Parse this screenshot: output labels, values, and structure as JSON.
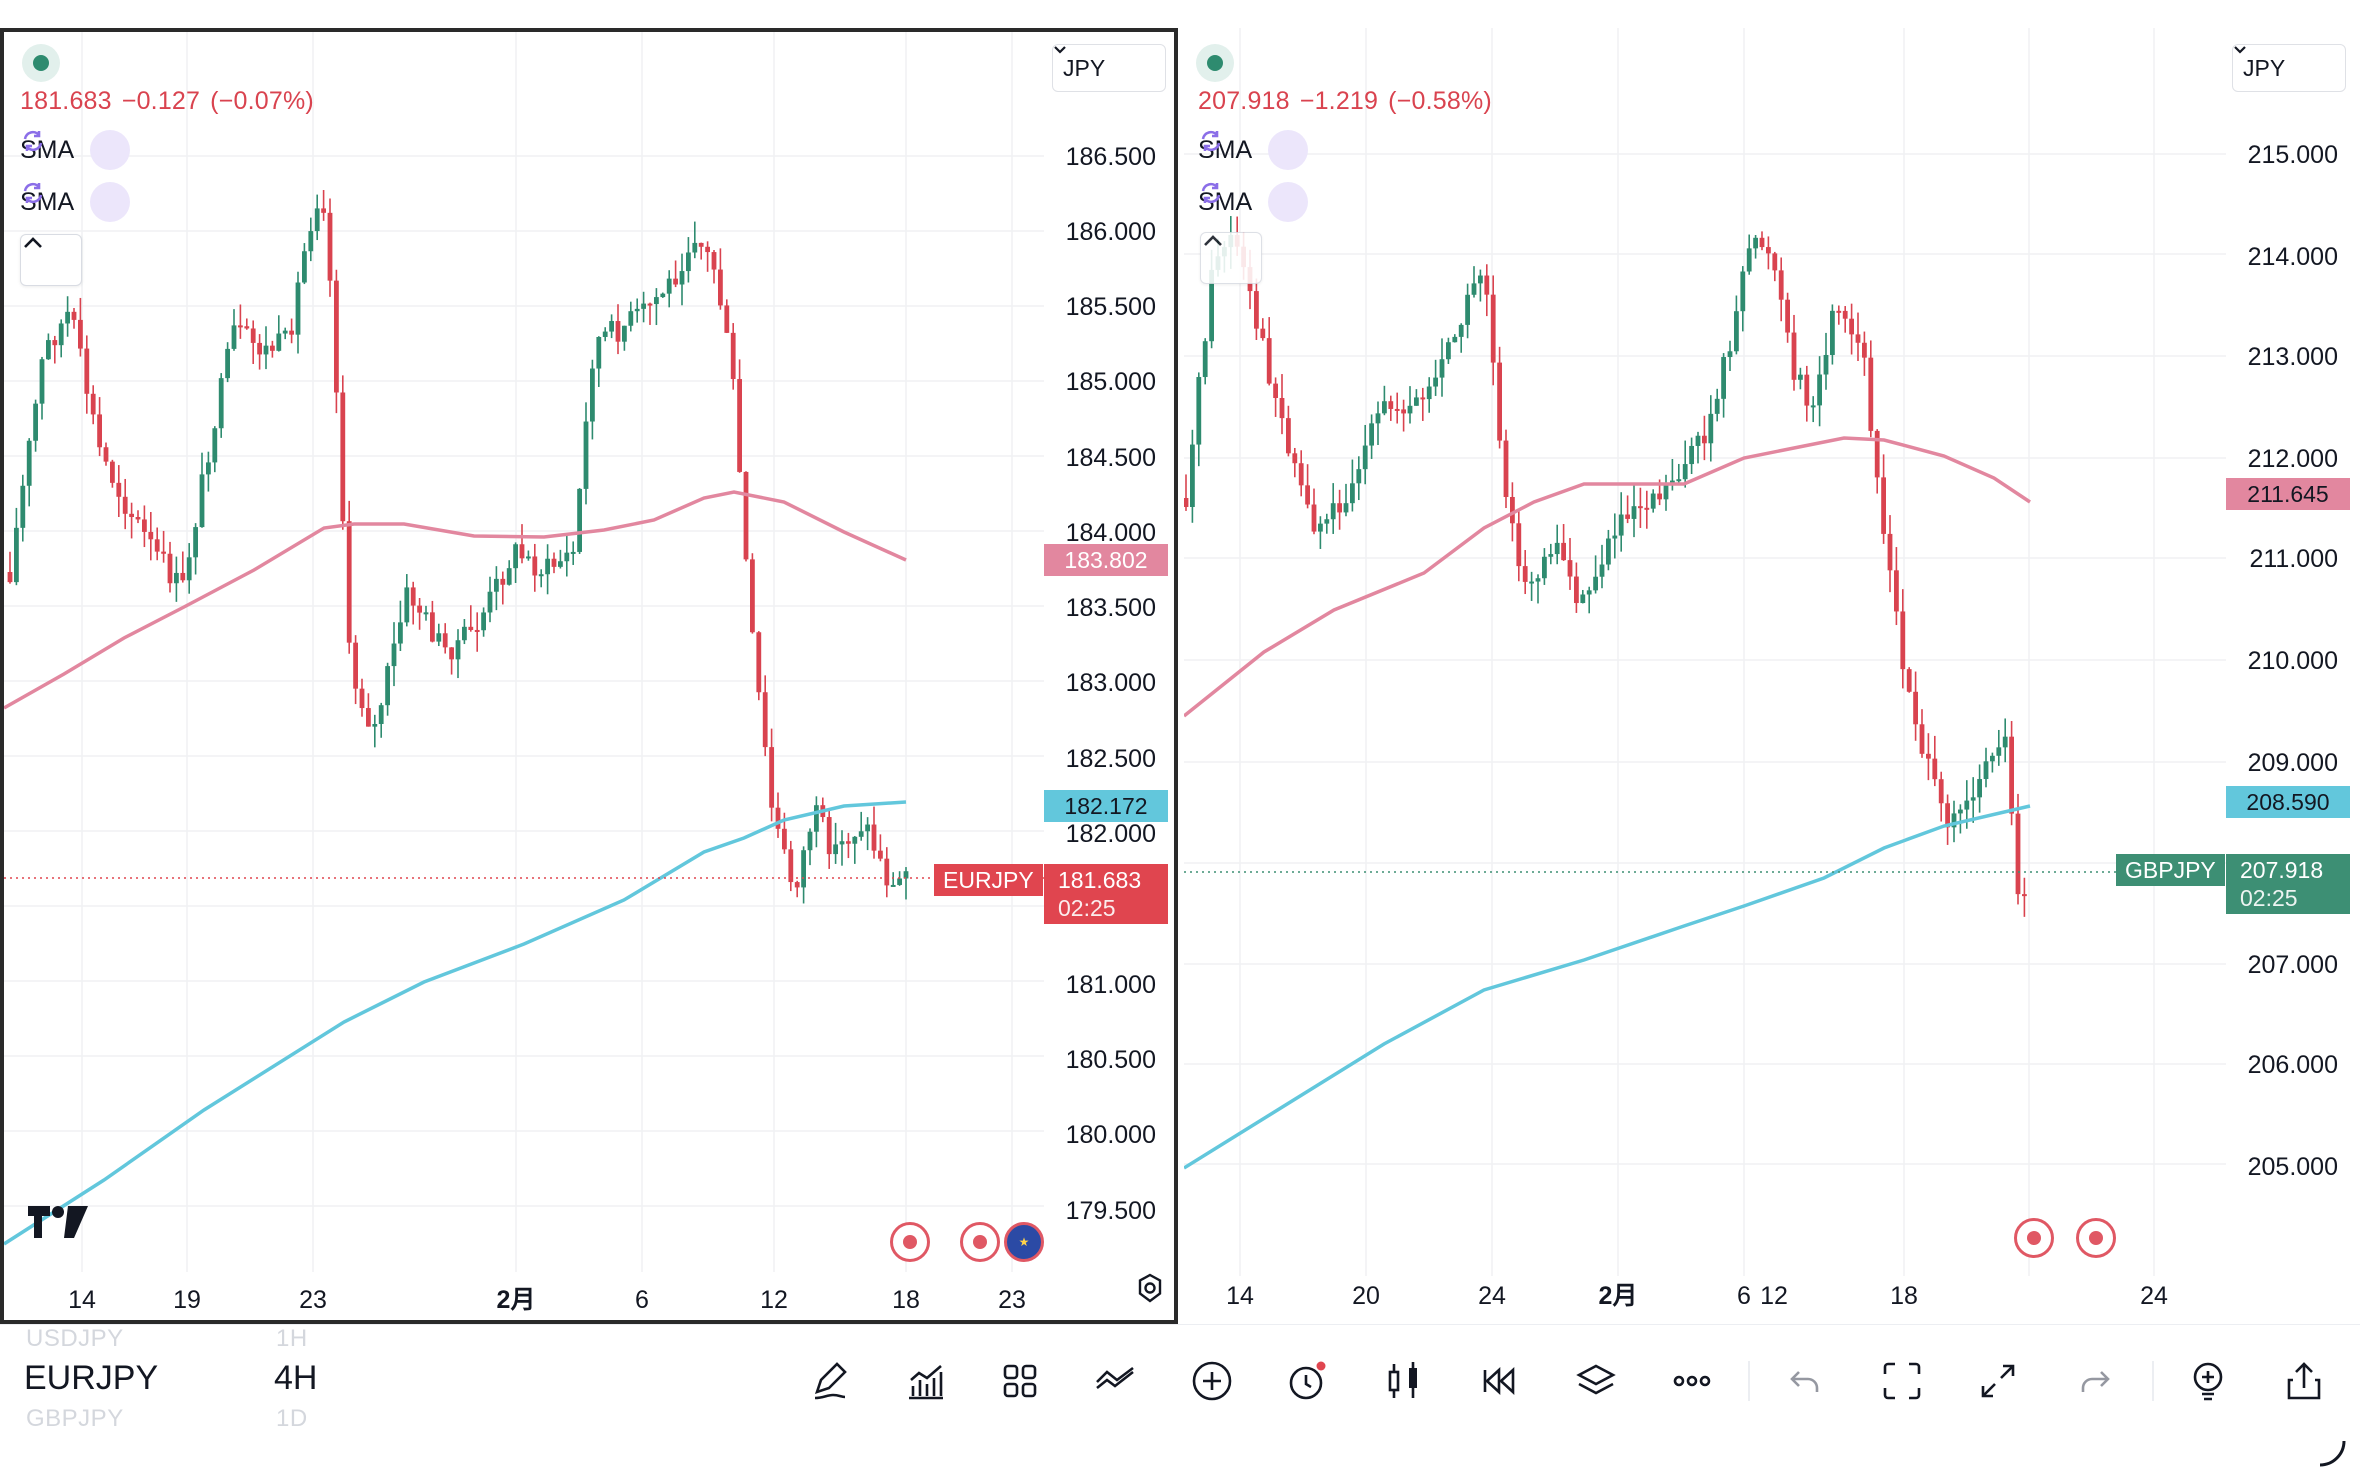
{
  "left_chart": {
    "symbol": "EURJPY",
    "currency": "JPY",
    "quote": {
      "price": "181.683",
      "change": "−0.127",
      "change_pct": "(−0.07%)"
    },
    "indicators": [
      {
        "label": "SMA"
      },
      {
        "label": "SMA"
      }
    ],
    "price_axis": [
      "186.500",
      "186.000",
      "185.500",
      "185.000",
      "184.500",
      "184.000",
      "183.500",
      "183.000",
      "182.500",
      "182.000",
      "181.000",
      "180.500",
      "180.000",
      "179.500"
    ],
    "time_axis": [
      "14",
      "19",
      "23",
      "2月",
      "6",
      "12",
      "18",
      "23"
    ],
    "sma_slow_value": "183.802",
    "sma_fast_value": "182.172",
    "last_price": "181.683",
    "countdown": "02:25",
    "colors": {
      "up": "#2e8b6f",
      "down": "#d9434f",
      "sma_slow": "#e2879f",
      "sma_fast": "#62c7dc"
    }
  },
  "right_chart": {
    "symbol": "GBPJPY",
    "currency": "JPY",
    "quote": {
      "price": "207.918",
      "change": "−1.219",
      "change_pct": "(−0.58%)"
    },
    "indicators": [
      {
        "label": "SMA"
      },
      {
        "label": "SMA"
      }
    ],
    "price_axis": [
      "215.000",
      "214.000",
      "213.000",
      "212.000",
      "211.000",
      "210.000",
      "209.000",
      "207.000",
      "206.000",
      "205.000"
    ],
    "time_axis": [
      "14",
      "20",
      "24",
      "2月",
      "6",
      "12",
      "18",
      "24"
    ],
    "sma_slow_value": "211.645",
    "sma_fast_value": "208.590",
    "last_price": "207.918",
    "countdown": "02:25",
    "colors": {
      "up": "#2e8b6f",
      "down": "#d9434f",
      "sma_slow": "#e2879f",
      "sma_fast": "#62c7dc"
    }
  },
  "bottombar": {
    "ghost_above": {
      "symbol": "USDJPY",
      "timeframe": "1H"
    },
    "symbol": "EURJPY",
    "timeframe": "4H",
    "ghost_below": {
      "symbol": "GBPJPY",
      "timeframe": "1D"
    },
    "tools": [
      "pen-icon",
      "indicators-icon",
      "layout-grid-icon",
      "compare-icon",
      "add-icon",
      "alert-icon",
      "candles-icon",
      "replay-icon",
      "layers-icon",
      "more-icon",
      "undo-icon",
      "fullscreen-select-icon",
      "expand-icon",
      "redo-icon",
      "idea-icon",
      "share-icon"
    ]
  }
}
